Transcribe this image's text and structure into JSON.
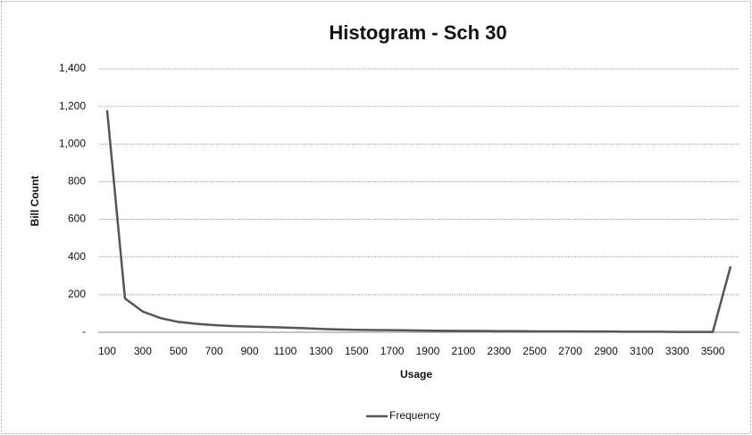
{
  "chart_data": {
    "type": "line",
    "title": "Histogram - Sch 30",
    "x_label": "Usage",
    "y_label": "Bill Count",
    "categories": [
      100,
      null,
      300,
      null,
      500,
      null,
      700,
      null,
      900,
      null,
      1100,
      null,
      1300,
      null,
      1500,
      null,
      1700,
      null,
      1900,
      null,
      2100,
      null,
      2300,
      null,
      2500,
      null,
      2700,
      null,
      2900,
      null,
      3100,
      null,
      3300,
      null,
      3500,
      null
    ],
    "series": [
      {
        "name": "Frequency",
        "color": "#555555",
        "values": [
          1180,
          180,
          110,
          75,
          55,
          45,
          38,
          33,
          30,
          28,
          25,
          22,
          18,
          15,
          13,
          12,
          11,
          10,
          9,
          8,
          7,
          7,
          6,
          6,
          5,
          5,
          5,
          4,
          4,
          3,
          3,
          3,
          2,
          2,
          2,
          350
        ]
      }
    ],
    "ylim": [
      0,
      1400
    ],
    "yticks": [
      {
        "value": 0,
        "label": "-"
      },
      200,
      400,
      600,
      800,
      {
        "value": 1000,
        "label": "1,000"
      },
      {
        "value": 1200,
        "label": "1,200"
      },
      {
        "value": 1400,
        "label": "1,400"
      }
    ],
    "grid": true,
    "legend": "bottom"
  }
}
